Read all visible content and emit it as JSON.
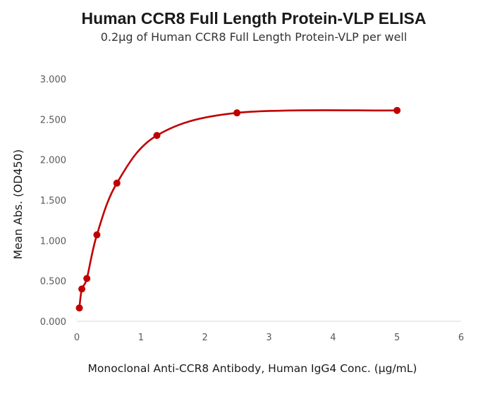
{
  "chart_data": {
    "type": "line",
    "title": "Human CCR8 Full Length Protein-VLP ELISA",
    "subtitle": "0.2μg of Human CCR8 Full Length Protein-VLP per well",
    "xlabel": "Monoclonal Anti-CCR8 Antibody, Human IgG4 Conc. (μg/mL)",
    "ylabel": "Mean Abs. (OD450)",
    "xlim": [
      0,
      6
    ],
    "ylim": [
      0,
      3
    ],
    "x_ticks": [
      "0",
      "1",
      "2",
      "3",
      "4",
      "5",
      "6"
    ],
    "y_ticks": [
      "0.000",
      "0.500",
      "1.000",
      "1.500",
      "2.000",
      "2.500",
      "3.000"
    ],
    "grid": false,
    "legend": "none",
    "series": [
      {
        "color": "#c00000",
        "x": [
          0.039,
          0.078,
          0.156,
          0.313,
          0.625,
          1.25,
          2.5,
          5.0
        ],
        "y": [
          0.165,
          0.4,
          0.53,
          1.07,
          1.71,
          2.3,
          2.58,
          2.61
        ]
      }
    ]
  }
}
